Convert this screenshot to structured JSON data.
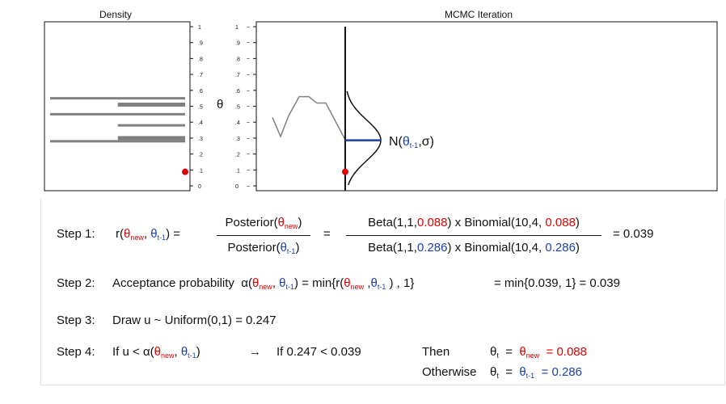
{
  "panels": {
    "density_title": "Density",
    "mcmc_title": "MCMC Iteration",
    "theta_axis_label": "θ",
    "ticks": [
      "0",
      ".1",
      ".2",
      ".3",
      ".4",
      ".5",
      ".6",
      ".7",
      ".8",
      ".9",
      "1"
    ],
    "proposal_label_prefix": "N(",
    "proposal_label_theta": "θ",
    "proposal_label_sub": "t-1",
    "proposal_label_suffix": ",σ)",
    "density_bars": [
      {
        "theta": 0.55,
        "start": 0.0
      },
      {
        "theta": 0.51,
        "start": 0.5
      },
      {
        "theta": 0.45,
        "start": 0.0
      },
      {
        "theta": 0.38,
        "start": 0.5
      },
      {
        "theta": 0.3,
        "start": 0.5
      },
      {
        "theta": 0.28,
        "start": 0.0
      }
    ],
    "trace": [
      0.43,
      0.31,
      0.44,
      0.56,
      0.56,
      0.52,
      0.52,
      0.29
    ],
    "current_point_theta": 0.088,
    "proposal_mean": 0.286,
    "colors": {
      "red": "#e00000",
      "blue": "#1a3fb0",
      "gray": "#808080"
    }
  },
  "step1": {
    "label": "Step 1:",
    "r": "r(",
    "theta": "θ",
    "new": "new",
    "t1": "t-1",
    "comma": ",",
    "close_eq": ")  =",
    "posterior": "Posterior(",
    "close": ")",
    "eq": "=",
    "beta_prefix": "Beta(1,1,",
    "binom_prefix": ") x Binomial(10,4, ",
    "new_val": "0.088",
    "old_val": "0.286",
    "result": "=   0.039"
  },
  "step2": {
    "label": "Step 2:",
    "text1": "Acceptance probability",
    "alpha": "α(",
    "mid": ")  =  min{r(",
    "end": " ) , 1}",
    "rest": "=   min{0.039, 1}   =   0.039"
  },
  "step3": {
    "label": "Step 3:",
    "text": "Draw u ~ Uniform(0,1)  =  0.247"
  },
  "step4": {
    "label": "Step 4:",
    "if_u": "If   u <",
    "alpha": "α(",
    "close": ")",
    "arrow": "→",
    "if_val": "If  0.247 < 0.039",
    "then": "Then",
    "otherwise": "Otherwise",
    "theta_t_sub": "t",
    "eq": "=",
    "new_val": "= 0.088",
    "old_val": "= 0.286"
  }
}
